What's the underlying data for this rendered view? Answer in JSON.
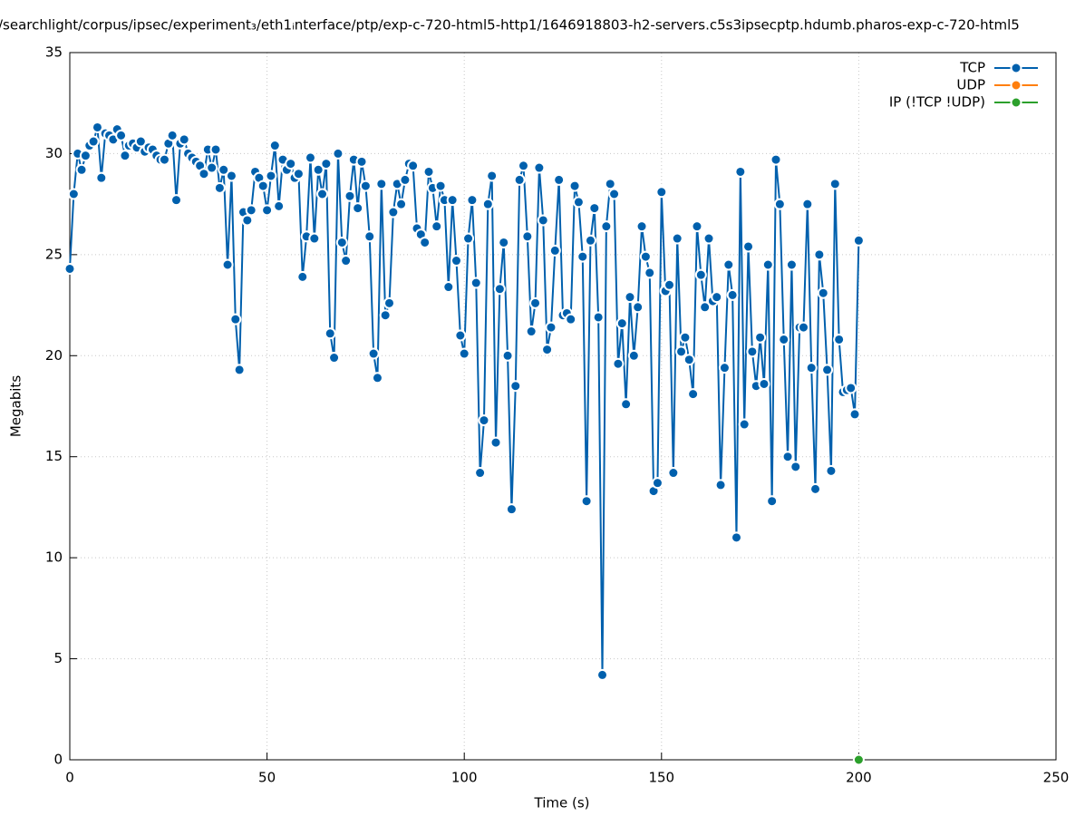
{
  "chart_data": {
    "type": "line",
    "title": "/searchlight/corpus/ipsec/experiment₃/eth1ᵢnterface/ptp/exp-c-720-html5-http1/1646918803-h2-servers.c5s3ipsecptp.hdumb.pharos-exp-c-720-html5",
    "xlabel": "Time (s)",
    "ylabel": "Megabits",
    "xlim": [
      0,
      250
    ],
    "xticks": [
      0,
      50,
      100,
      150,
      200,
      250
    ],
    "ylim": [
      0,
      35
    ],
    "yticks": [
      0,
      5,
      10,
      15,
      20,
      25,
      30,
      35
    ],
    "grid": true,
    "legend": "top-right",
    "series": [
      {
        "name": "TCP",
        "color": "#0060ad",
        "x": [
          0,
          1,
          2,
          3,
          4,
          5,
          6,
          7,
          8,
          9,
          10,
          11,
          12,
          13,
          14,
          15,
          16,
          17,
          18,
          19,
          20,
          21,
          22,
          23,
          24,
          25,
          26,
          27,
          28,
          29,
          30,
          31,
          32,
          33,
          34,
          35,
          36,
          37,
          38,
          39,
          40,
          41,
          42,
          43,
          44,
          45,
          46,
          47,
          48,
          49,
          50,
          51,
          52,
          53,
          54,
          55,
          56,
          57,
          58,
          59,
          60,
          61,
          62,
          63,
          64,
          65,
          66,
          67,
          68,
          69,
          70,
          71,
          72,
          73,
          74,
          75,
          76,
          77,
          78,
          79,
          80,
          81,
          82,
          83,
          84,
          85,
          86,
          87,
          88,
          89,
          90,
          91,
          92,
          93,
          94,
          95,
          96,
          97,
          98,
          99,
          100,
          101,
          102,
          103,
          104,
          105,
          106,
          107,
          108,
          109,
          110,
          111,
          112,
          113,
          114,
          115,
          116,
          117,
          118,
          119,
          120,
          121,
          122,
          123,
          124,
          125,
          126,
          127,
          128,
          129,
          130,
          131,
          132,
          133,
          134,
          135,
          136,
          137,
          138,
          139,
          140,
          141,
          142,
          143,
          144,
          145,
          146,
          147,
          148,
          149,
          150,
          151,
          152,
          153,
          154,
          155,
          156,
          157,
          158,
          159,
          160,
          161,
          162,
          163,
          164,
          165,
          166,
          167,
          168,
          169,
          170,
          171,
          172,
          173,
          174,
          175,
          176,
          177,
          178,
          179,
          180,
          181,
          182,
          183,
          184,
          185,
          186,
          187,
          188,
          189,
          190,
          191,
          192,
          193,
          194,
          195,
          196,
          197,
          198,
          199,
          200
        ],
        "values": [
          24.3,
          28.0,
          30.0,
          29.2,
          29.9,
          30.4,
          30.6,
          31.3,
          28.8,
          31.0,
          30.9,
          30.7,
          31.2,
          30.9,
          29.9,
          30.4,
          30.5,
          30.3,
          30.6,
          30.1,
          30.3,
          30.2,
          29.9,
          29.7,
          29.7,
          30.5,
          30.9,
          27.7,
          30.5,
          30.7,
          30.0,
          29.8,
          29.6,
          29.4,
          29.0,
          30.2,
          29.3,
          30.2,
          28.3,
          29.2,
          24.5,
          28.9,
          21.8,
          19.3,
          27.1,
          26.7,
          27.2,
          29.1,
          28.8,
          28.4,
          27.2,
          28.9,
          30.4,
          27.4,
          29.7,
          29.2,
          29.5,
          28.8,
          29.0,
          23.9,
          25.9,
          29.8,
          25.8,
          29.2,
          28.0,
          29.5,
          21.1,
          19.9,
          30.0,
          25.6,
          24.7,
          27.9,
          29.7,
          27.3,
          29.6,
          28.4,
          25.9,
          20.1,
          18.9,
          28.5,
          22.0,
          22.6,
          27.1,
          28.5,
          27.5,
          28.7,
          29.5,
          29.4,
          26.3,
          26.0,
          25.6,
          29.1,
          28.3,
          26.4,
          28.4,
          27.7,
          23.4,
          27.7,
          24.7,
          21.0,
          20.1,
          25.8,
          27.7,
          23.6,
          14.2,
          16.8,
          27.5,
          28.9,
          15.7,
          23.3,
          25.6,
          20.0,
          12.4,
          18.5,
          28.7,
          29.4,
          25.9,
          21.2,
          22.6,
          29.3,
          26.7,
          20.3,
          21.4,
          25.2,
          28.7,
          22.0,
          22.1,
          21.8,
          28.4,
          27.6,
          24.9,
          12.8,
          25.7,
          27.3,
          21.9,
          4.2,
          26.4,
          28.5,
          28.0,
          19.6,
          21.6,
          17.6,
          22.9,
          20.0,
          22.4,
          26.4,
          24.9,
          24.1,
          13.3,
          13.7,
          28.1,
          23.2,
          23.5,
          14.2,
          25.8,
          20.2,
          20.9,
          19.8,
          18.1,
          26.4,
          24.0,
          22.4,
          25.8,
          22.7,
          22.9,
          13.6,
          19.4,
          24.5,
          23.0,
          11.0,
          29.1,
          16.6,
          25.4,
          20.2,
          18.5,
          20.9,
          18.6,
          24.5,
          12.8,
          29.7,
          27.5,
          20.8,
          15.0,
          24.5,
          14.5,
          21.4,
          21.4,
          27.5,
          19.4,
          13.4,
          25.0,
          23.1,
          19.3,
          14.3,
          28.5,
          20.8,
          18.2,
          18.3,
          18.4,
          17.1,
          25.7
        ]
      },
      {
        "name": "UDP",
        "color": "#ff7f0e",
        "x": [],
        "values": []
      },
      {
        "name": "IP (!TCP  !UDP)",
        "color": "#2ca02c",
        "x": [
          200
        ],
        "values": [
          0
        ]
      }
    ]
  }
}
